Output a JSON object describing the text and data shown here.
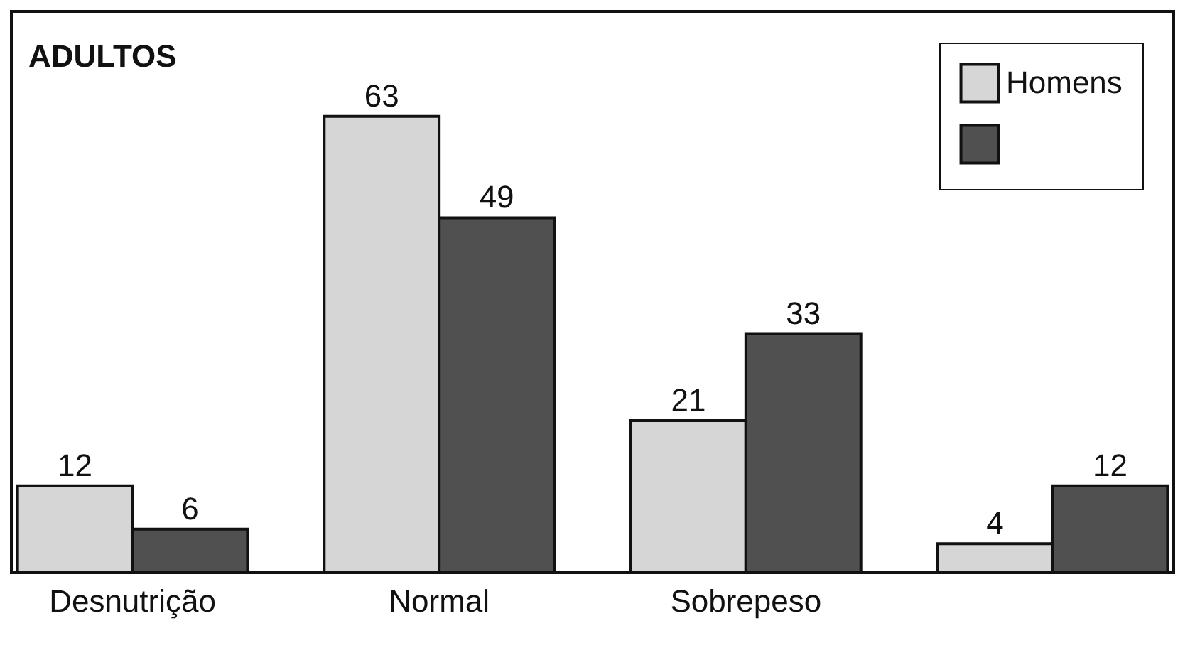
{
  "chart_data": {
    "type": "bar",
    "title": "ADULTOS",
    "categories": [
      "Desnutrição",
      "Normal",
      "Sobrepeso",
      null
    ],
    "series": [
      {
        "name": "Homens",
        "color": "#d6d6d6",
        "values": [
          12,
          63,
          21,
          4
        ]
      },
      {
        "color": "#505050",
        "values": [
          6,
          49,
          33,
          12
        ]
      }
    ],
    "data_labels": true,
    "legend": "top right",
    "grid": false
  }
}
